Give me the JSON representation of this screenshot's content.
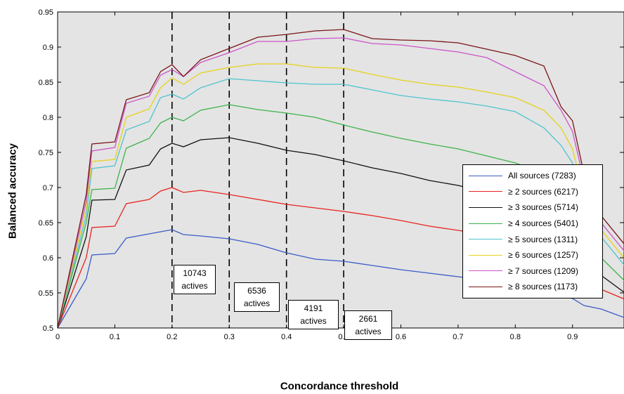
{
  "chart_data": {
    "type": "line",
    "xlabel": "Concordance threshold",
    "ylabel": "Balanced accuracy",
    "xlim": [
      0,
      1
    ],
    "ylim": [
      0.5,
      0.95
    ],
    "x_ticks": [
      "0",
      "0.1",
      "0.2",
      "0.3",
      "0.4",
      "0.5",
      "0.6",
      "0.7",
      "0.8",
      "0.9",
      "1"
    ],
    "y_ticks": [
      "0.5",
      "0.55",
      "0.6",
      "0.65",
      "0.7",
      "0.75",
      "0.8",
      "0.85",
      "0.9",
      "0.95"
    ],
    "grid": false,
    "legend_position": "right",
    "x": [
      0,
      0.05,
      0.06,
      0.1,
      0.12,
      0.16,
      0.18,
      0.2,
      0.22,
      0.25,
      0.3,
      0.35,
      0.4,
      0.45,
      0.5,
      0.55,
      0.6,
      0.65,
      0.7,
      0.75,
      0.8,
      0.85,
      0.88,
      0.9,
      0.92,
      0.95,
      1
    ],
    "series": [
      {
        "name": "All sources (7283)",
        "color": "#3a5bc7",
        "values": [
          0.5,
          0.57,
          0.604,
          0.606,
          0.628,
          0.634,
          0.637,
          0.64,
          0.633,
          0.631,
          0.627,
          0.619,
          0.607,
          0.598,
          0.595,
          0.589,
          0.583,
          0.578,
          0.573,
          0.568,
          0.562,
          0.555,
          0.548,
          0.542,
          0.532,
          0.527,
          0.512
        ]
      },
      {
        "name": "≥ 2 sources (6217)",
        "color": "#e8231f",
        "values": [
          0.5,
          0.6,
          0.643,
          0.645,
          0.677,
          0.683,
          0.695,
          0.7,
          0.693,
          0.696,
          0.69,
          0.683,
          0.676,
          0.671,
          0.666,
          0.66,
          0.653,
          0.645,
          0.639,
          0.633,
          0.626,
          0.616,
          0.606,
          0.596,
          0.566,
          0.555,
          0.538
        ]
      },
      {
        "name": "≥ 3 sources (5714)",
        "color": "#111111",
        "values": [
          0.5,
          0.63,
          0.682,
          0.683,
          0.725,
          0.732,
          0.755,
          0.763,
          0.758,
          0.768,
          0.771,
          0.763,
          0.753,
          0.747,
          0.738,
          0.728,
          0.72,
          0.71,
          0.703,
          0.693,
          0.684,
          0.67,
          0.655,
          0.64,
          0.6,
          0.575,
          0.545
        ]
      },
      {
        "name": "≥ 4 sources (5401)",
        "color": "#3cb34a",
        "values": [
          0.5,
          0.65,
          0.697,
          0.699,
          0.756,
          0.77,
          0.792,
          0.8,
          0.795,
          0.81,
          0.818,
          0.811,
          0.806,
          0.8,
          0.789,
          0.779,
          0.77,
          0.762,
          0.755,
          0.745,
          0.735,
          0.72,
          0.705,
          0.688,
          0.64,
          0.6,
          0.56
        ]
      },
      {
        "name": "≥ 5 sources (1311)",
        "color": "#4fc4cf",
        "values": [
          0.5,
          0.66,
          0.727,
          0.731,
          0.782,
          0.794,
          0.828,
          0.833,
          0.826,
          0.842,
          0.855,
          0.852,
          0.849,
          0.847,
          0.847,
          0.839,
          0.831,
          0.826,
          0.822,
          0.816,
          0.808,
          0.785,
          0.76,
          0.735,
          0.68,
          0.63,
          0.58
        ]
      },
      {
        "name": "≥ 6 sources (1257)",
        "color": "#e6d21a",
        "values": [
          0.5,
          0.67,
          0.737,
          0.74,
          0.8,
          0.812,
          0.842,
          0.856,
          0.847,
          0.863,
          0.871,
          0.876,
          0.876,
          0.871,
          0.87,
          0.861,
          0.853,
          0.847,
          0.843,
          0.836,
          0.828,
          0.81,
          0.785,
          0.755,
          0.69,
          0.64,
          0.59
        ]
      },
      {
        "name": "≥ 7 sources (1209)",
        "color": "#cc55c8",
        "values": [
          0.5,
          0.68,
          0.752,
          0.757,
          0.82,
          0.83,
          0.86,
          0.868,
          0.858,
          0.878,
          0.892,
          0.908,
          0.908,
          0.912,
          0.913,
          0.905,
          0.903,
          0.898,
          0.893,
          0.885,
          0.865,
          0.845,
          0.81,
          0.78,
          0.71,
          0.65,
          0.6
        ]
      },
      {
        "name": "≥ 8 sources (1173)",
        "color": "#7a1418",
        "values": [
          0.5,
          0.69,
          0.762,
          0.765,
          0.825,
          0.835,
          0.865,
          0.875,
          0.858,
          0.882,
          0.898,
          0.914,
          0.918,
          0.923,
          0.925,
          0.912,
          0.91,
          0.909,
          0.906,
          0.897,
          0.888,
          0.873,
          0.815,
          0.795,
          0.72,
          0.66,
          0.61
        ]
      }
    ],
    "threshold_lines": [
      0.2,
      0.3,
      0.4,
      0.5
    ],
    "annotations": [
      {
        "line1": "10743",
        "line2": "actives"
      },
      {
        "line1": "6536",
        "line2": "actives"
      },
      {
        "line1": "4191",
        "line2": "actives"
      },
      {
        "line1": "2661",
        "line2": "actives"
      }
    ]
  }
}
